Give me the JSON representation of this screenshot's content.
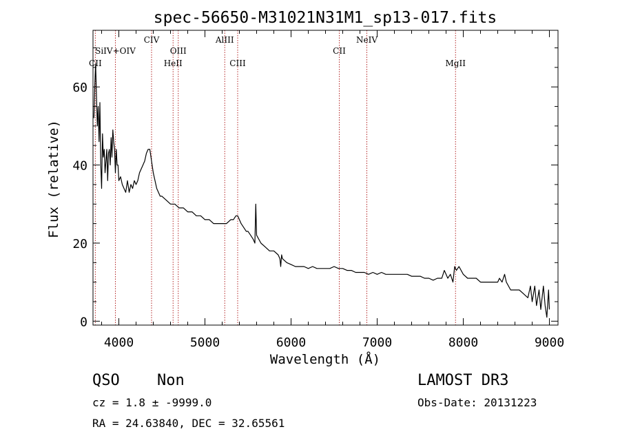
{
  "chart_data": {
    "type": "line",
    "title": "spec-56650-M31021N31M1_sp13-017.fits",
    "xlabel": "Wavelength (Å)",
    "ylabel": "Flux (relative)",
    "xlim": [
      3700,
      9100
    ],
    "ylim": [
      -1,
      74.5
    ],
    "xticks": [
      4000,
      5000,
      6000,
      7000,
      8000,
      9000
    ],
    "yticks": [
      0,
      20,
      40,
      60
    ],
    "grid": false,
    "line_color": "#000000",
    "marker_color": "#b22222",
    "series": [
      {
        "x": [
          3710,
          3720,
          3730,
          3740,
          3750,
          3760,
          3770,
          3780,
          3790,
          3800,
          3810,
          3820,
          3830,
          3840,
          3850,
          3860,
          3870,
          3880,
          3890,
          3900,
          3910,
          3920,
          3930,
          3940,
          3950,
          3960,
          3970,
          3980,
          3990,
          4000,
          4020,
          4040,
          4060,
          4080,
          4100,
          4120,
          4140,
          4160,
          4180,
          4200,
          4220,
          4240,
          4260,
          4280,
          4300,
          4320,
          4340,
          4360,
          4380,
          4400,
          4420,
          4440,
          4460,
          4480,
          4500,
          4550,
          4600,
          4650,
          4700,
          4750,
          4800,
          4850,
          4900,
          4950,
          5000,
          5050,
          5100,
          5150,
          5200,
          5250,
          5300,
          5330,
          5360,
          5380,
          5400,
          5420,
          5450,
          5480,
          5500,
          5530,
          5560,
          5580,
          5590,
          5600,
          5650,
          5700,
          5750,
          5800,
          5850,
          5870,
          5880,
          5890,
          5900,
          5950,
          6000,
          6050,
          6100,
          6150,
          6200,
          6250,
          6300,
          6350,
          6400,
          6450,
          6500,
          6550,
          6600,
          6650,
          6700,
          6750,
          6800,
          6850,
          6900,
          6950,
          7000,
          7050,
          7100,
          7150,
          7200,
          7250,
          7300,
          7350,
          7400,
          7450,
          7500,
          7550,
          7600,
          7650,
          7700,
          7750,
          7780,
          7800,
          7820,
          7850,
          7880,
          7900,
          7920,
          7950,
          8000,
          8050,
          8100,
          8150,
          8200,
          8250,
          8300,
          8350,
          8400,
          8420,
          8450,
          8480,
          8500,
          8550,
          8600,
          8650,
          8700,
          8750,
          8780,
          8800,
          8830,
          8850,
          8880,
          8900,
          8930,
          8950,
          8970,
          8990,
          9000
        ],
        "values": [
          52,
          60,
          66,
          58,
          50,
          55,
          46,
          56,
          40,
          34,
          48,
          42,
          44,
          38,
          41,
          44,
          36,
          43,
          44,
          40,
          47,
          42,
          49,
          46,
          44,
          38,
          44,
          40,
          40,
          36,
          37,
          35,
          34,
          33,
          36,
          33,
          35,
          34,
          36,
          35,
          36,
          38,
          39,
          40,
          41,
          43,
          44,
          44,
          41,
          38,
          36,
          34,
          33,
          32,
          32,
          31,
          30,
          30,
          29,
          29,
          28,
          28,
          27,
          27,
          26,
          26,
          25,
          25,
          25,
          25,
          26,
          26,
          27,
          27,
          26,
          25,
          24,
          23,
          23,
          22,
          21,
          20,
          30,
          22,
          20,
          19,
          18,
          18,
          17,
          16,
          14,
          17,
          16,
          15,
          14.5,
          14,
          14,
          14,
          13.5,
          14,
          13.5,
          13.5,
          13.5,
          13.5,
          14,
          13.5,
          13.5,
          13,
          13,
          12.5,
          12.5,
          12.5,
          12,
          12.5,
          12,
          12.5,
          12,
          12,
          12,
          12,
          12,
          12,
          11.5,
          11.5,
          11.5,
          11,
          11,
          10.5,
          11,
          11,
          13,
          12,
          11,
          12,
          10,
          14,
          13,
          14,
          12,
          11,
          11,
          11,
          10,
          10,
          10,
          10,
          10,
          11,
          10,
          12,
          10,
          8,
          8,
          8,
          7,
          6,
          9,
          5,
          9,
          4,
          8,
          3,
          9,
          4,
          1,
          8,
          3
        ]
      }
    ],
    "lines": [
      {
        "label": "CII",
        "x": 3727
      },
      {
        "label": "SiIV+OIV",
        "x": 3960
      },
      {
        "label": "CIV",
        "x": 4380
      },
      {
        "label": "HeII",
        "x": 4630
      },
      {
        "label": "OIII",
        "x": 4690
      },
      {
        "label": "AlIII",
        "x": 5230
      },
      {
        "label": "CIII",
        "x": 5380
      },
      {
        "label": "CII",
        "x": 6560
      },
      {
        "label": "NeIV",
        "x": 6880
      },
      {
        "label": "MgII",
        "x": 7910
      }
    ]
  },
  "info": {
    "object_class": "QSO",
    "subclass": "Non",
    "survey": "LAMOST DR3",
    "redshift": "cz = 1.8 ± -9999.0",
    "obs_date": "Obs-Date: 20131223",
    "coords": "RA =  24.63840, DEC =  32.65561"
  }
}
